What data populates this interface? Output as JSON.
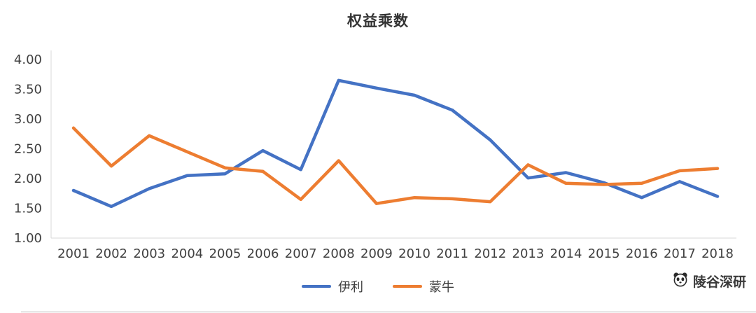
{
  "title": "权益乘数",
  "watermark": {
    "icon": "panda-logo",
    "text": "陵谷深研"
  },
  "legend": {
    "items": [
      {
        "label": "伊利",
        "color": "#4472C4"
      },
      {
        "label": "蒙牛",
        "color": "#ED7D31"
      }
    ]
  },
  "chart_data": {
    "type": "line",
    "title": "权益乘数",
    "x": [
      2001,
      2002,
      2003,
      2004,
      2005,
      2006,
      2007,
      2008,
      2009,
      2010,
      2011,
      2012,
      2013,
      2014,
      2015,
      2016,
      2017,
      2018
    ],
    "series": [
      {
        "name": "伊利",
        "color": "#4472C4",
        "values": [
          1.8,
          1.53,
          1.83,
          2.05,
          2.08,
          2.47,
          2.15,
          3.65,
          3.52,
          3.4,
          3.15,
          2.65,
          2.01,
          2.1,
          1.93,
          1.68,
          1.95,
          1.7
        ]
      },
      {
        "name": "蒙牛",
        "color": "#ED7D31",
        "values": [
          2.85,
          2.21,
          2.72,
          2.45,
          2.18,
          2.12,
          1.65,
          2.3,
          1.58,
          1.68,
          1.66,
          1.61,
          2.23,
          1.92,
          1.9,
          1.92,
          2.13,
          2.17
        ]
      }
    ],
    "ylim": [
      1.0,
      4.0
    ],
    "y_ticks": [
      "4.00",
      "3.50",
      "3.00",
      "2.50",
      "2.00",
      "1.50",
      "1.00"
    ],
    "grid": false,
    "legend_position": "bottom",
    "axis_color": "#d9d9d9",
    "tick_label_color": "#404040"
  }
}
